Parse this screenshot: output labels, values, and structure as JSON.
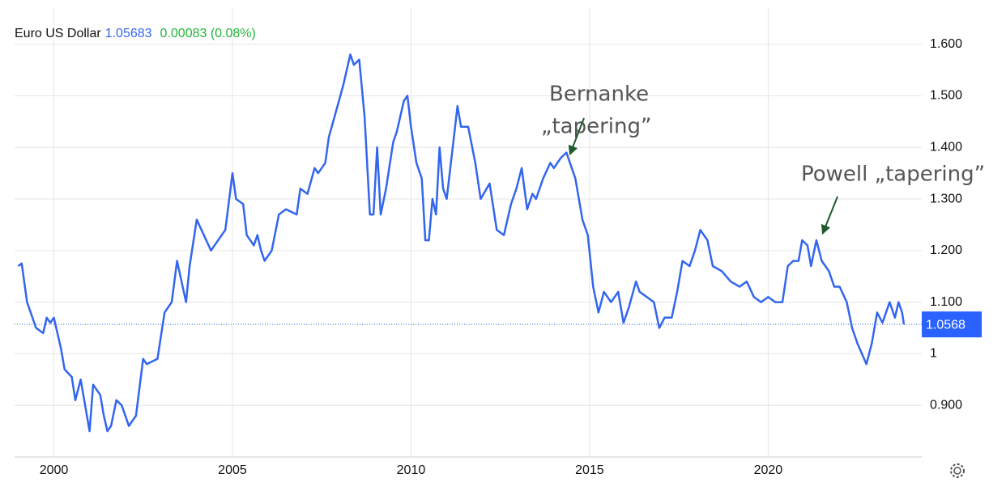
{
  "chart_data": {
    "type": "line",
    "title": "Euro US Dollar",
    "title_value": "1.05683",
    "title_change": "0.00083 (0.08%)",
    "x": [
      1999.0,
      1999.1,
      1999.25,
      1999.5,
      1999.7,
      1999.8,
      1999.9,
      2000.0,
      2000.2,
      2000.3,
      2000.5,
      2000.6,
      2000.75,
      2000.9,
      2001.0,
      2001.1,
      2001.3,
      2001.4,
      2001.5,
      2001.6,
      2001.75,
      2001.9,
      2002.1,
      2002.3,
      2002.5,
      2002.6,
      2002.9,
      2003.1,
      2003.3,
      2003.45,
      2003.7,
      2003.8,
      2004.0,
      2004.2,
      2004.4,
      2004.6,
      2004.8,
      2005.0,
      2005.1,
      2005.3,
      2005.4,
      2005.6,
      2005.7,
      2005.8,
      2005.9,
      2006.1,
      2006.3,
      2006.5,
      2006.8,
      2006.9,
      2007.1,
      2007.3,
      2007.4,
      2007.6,
      2007.7,
      2007.9,
      2008.1,
      2008.3,
      2008.4,
      2008.55,
      2008.7,
      2008.85,
      2008.95,
      2009.05,
      2009.15,
      2009.3,
      2009.5,
      2009.6,
      2009.8,
      2009.9,
      2010.0,
      2010.15,
      2010.3,
      2010.4,
      2010.5,
      2010.6,
      2010.7,
      2010.8,
      2010.9,
      2011.0,
      2011.2,
      2011.3,
      2011.4,
      2011.6,
      2011.8,
      2011.95,
      2012.2,
      2012.4,
      2012.6,
      2012.8,
      2012.95,
      2013.1,
      2013.25,
      2013.4,
      2013.5,
      2013.7,
      2013.9,
      2014.0,
      2014.2,
      2014.35,
      2014.5,
      2014.6,
      2014.8,
      2014.95,
      2015.1,
      2015.25,
      2015.4,
      2015.6,
      2015.8,
      2015.95,
      2016.1,
      2016.3,
      2016.4,
      2016.6,
      2016.8,
      2016.95,
      2017.1,
      2017.3,
      2017.45,
      2017.6,
      2017.8,
      2017.95,
      2018.1,
      2018.3,
      2018.45,
      2018.7,
      2018.95,
      2019.2,
      2019.4,
      2019.6,
      2019.8,
      2020.0,
      2020.2,
      2020.4,
      2020.55,
      2020.7,
      2020.85,
      2020.95,
      2021.1,
      2021.2,
      2021.35,
      2021.5,
      2021.7,
      2021.85,
      2022.0,
      2022.2,
      2022.35,
      2022.5,
      2022.75,
      2022.9,
      2023.05,
      2023.2,
      2023.4,
      2023.55,
      2023.65,
      2023.75,
      2023.8
    ],
    "series": [
      {
        "name": "Euro US Dollar",
        "color": "#3366ee",
        "values": [
          1.17,
          1.175,
          1.1,
          1.05,
          1.04,
          1.07,
          1.06,
          1.07,
          1.01,
          0.97,
          0.955,
          0.91,
          0.95,
          0.89,
          0.85,
          0.94,
          0.92,
          0.88,
          0.85,
          0.86,
          0.91,
          0.9,
          0.86,
          0.88,
          0.99,
          0.98,
          0.99,
          1.08,
          1.1,
          1.18,
          1.1,
          1.17,
          1.26,
          1.23,
          1.2,
          1.22,
          1.24,
          1.35,
          1.3,
          1.29,
          1.23,
          1.21,
          1.23,
          1.2,
          1.18,
          1.2,
          1.27,
          1.28,
          1.27,
          1.32,
          1.31,
          1.36,
          1.35,
          1.37,
          1.42,
          1.47,
          1.52,
          1.58,
          1.56,
          1.57,
          1.46,
          1.27,
          1.27,
          1.4,
          1.27,
          1.32,
          1.41,
          1.43,
          1.49,
          1.5,
          1.44,
          1.37,
          1.34,
          1.22,
          1.22,
          1.3,
          1.27,
          1.4,
          1.32,
          1.3,
          1.42,
          1.48,
          1.44,
          1.44,
          1.37,
          1.3,
          1.33,
          1.24,
          1.23,
          1.29,
          1.32,
          1.36,
          1.28,
          1.31,
          1.3,
          1.34,
          1.37,
          1.36,
          1.38,
          1.39,
          1.36,
          1.34,
          1.26,
          1.23,
          1.13,
          1.08,
          1.12,
          1.1,
          1.12,
          1.06,
          1.09,
          1.14,
          1.12,
          1.11,
          1.1,
          1.05,
          1.07,
          1.07,
          1.12,
          1.18,
          1.17,
          1.2,
          1.24,
          1.22,
          1.17,
          1.16,
          1.14,
          1.13,
          1.14,
          1.11,
          1.1,
          1.11,
          1.1,
          1.1,
          1.17,
          1.18,
          1.18,
          1.22,
          1.21,
          1.17,
          1.22,
          1.18,
          1.16,
          1.13,
          1.13,
          1.1,
          1.05,
          1.02,
          0.98,
          1.02,
          1.08,
          1.06,
          1.1,
          1.07,
          1.1,
          1.08,
          1.057
        ]
      }
    ],
    "xlim": [
      1998.9,
      2024.3
    ],
    "ylim": [
      0.8,
      1.67
    ],
    "xticks": [
      2000,
      2005,
      2010,
      2015,
      2020
    ],
    "yticks": [
      {
        "value": 0.9,
        "label": "0.900"
      },
      1,
      {
        "value": 1.1,
        "label": "1.100"
      },
      {
        "value": 1.2,
        "label": "1.200"
      },
      {
        "value": 1.3,
        "label": "1.300"
      },
      {
        "value": 1.4,
        "label": "1.400"
      },
      {
        "value": 1.5,
        "label": "1.500"
      },
      {
        "value": 1.6,
        "label": "1.600"
      }
    ],
    "grid": true,
    "current": {
      "value": 1.05683,
      "label": "1.0568"
    },
    "annotations": [
      {
        "lines": [
          "Bernanke",
          "„tapering”"
        ]
      },
      {
        "lines": [
          "Powell „tapering”"
        ]
      }
    ]
  }
}
